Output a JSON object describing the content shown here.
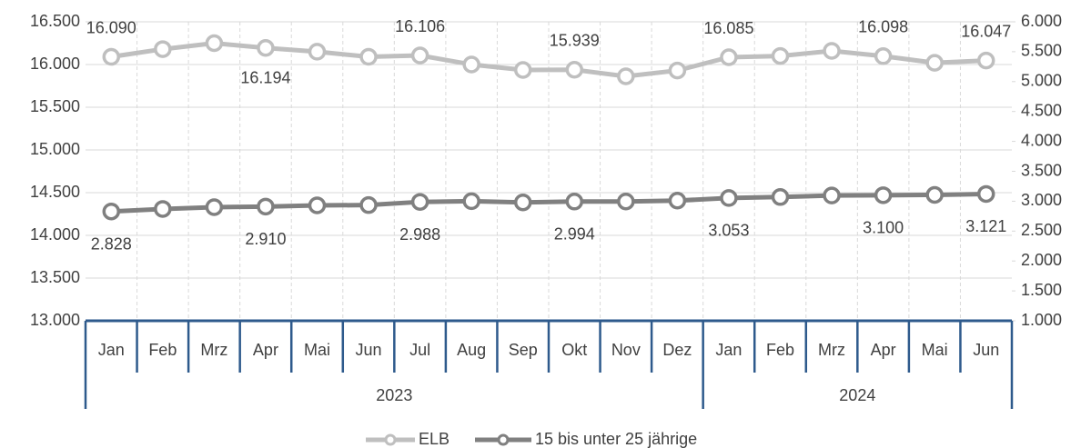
{
  "chart_data": {
    "type": "line",
    "categories": [
      "Jan",
      "Feb",
      "Mrz",
      "Apr",
      "Mai",
      "Jun",
      "Jul",
      "Aug",
      "Sep",
      "Okt",
      "Nov",
      "Dez",
      "Jan",
      "Feb",
      "Mrz",
      "Apr",
      "Mai",
      "Jun"
    ],
    "groups": [
      {
        "name": "2023",
        "count": 12
      },
      {
        "name": "2024",
        "count": 6
      }
    ],
    "series": [
      {
        "name": "ELB",
        "color": "#bfbfbf",
        "axis": "y",
        "values": [
          16090,
          16180,
          16250,
          16194,
          16150,
          16090,
          16106,
          16000,
          15936,
          15939,
          15862,
          15930,
          16085,
          16100,
          16160,
          16098,
          16020,
          16047
        ],
        "value_labels": [
          "16.090",
          null,
          null,
          "16.194",
          null,
          null,
          "16.106",
          null,
          null,
          "15.939",
          null,
          null,
          "16.085",
          null,
          null,
          "16.098",
          null,
          "16.047"
        ]
      },
      {
        "name": "15 bis unter 25 jährige",
        "color": "#808080",
        "axis": "y2",
        "values": [
          2828,
          2870,
          2900,
          2910,
          2930,
          2935,
          2988,
          3000,
          2980,
          2994,
          2995,
          3010,
          3053,
          3070,
          3095,
          3100,
          3105,
          3121
        ],
        "value_labels": [
          "2.828",
          null,
          null,
          "2.910",
          null,
          null,
          "2.988",
          null,
          null,
          "2.994",
          null,
          null,
          "3.053",
          null,
          null,
          "3.100",
          null,
          "3.121"
        ]
      }
    ],
    "ylim": [
      13000,
      16500
    ],
    "yticks": [
      {
        "value": 13000,
        "label": "13.000"
      },
      {
        "value": 13500,
        "label": "13.500"
      },
      {
        "value": 14000,
        "label": "14.000"
      },
      {
        "value": 14500,
        "label": "14.500"
      },
      {
        "value": 15000,
        "label": "15.000"
      },
      {
        "value": 15500,
        "label": "15.500"
      },
      {
        "value": 16000,
        "label": "16.000"
      },
      {
        "value": 16500,
        "label": "16.500"
      }
    ],
    "y2lim": [
      1000,
      6000
    ],
    "y2ticks": [
      {
        "value": 1000,
        "label": "1.000"
      },
      {
        "value": 1500,
        "label": "1.500"
      },
      {
        "value": 2000,
        "label": "2.000"
      },
      {
        "value": 2500,
        "label": "2.500"
      },
      {
        "value": 3000,
        "label": "3.000"
      },
      {
        "value": 3500,
        "label": "3.500"
      },
      {
        "value": 4000,
        "label": "4.000"
      },
      {
        "value": 4500,
        "label": "4.500"
      },
      {
        "value": 5000,
        "label": "5.000"
      },
      {
        "value": 5500,
        "label": "5.500"
      },
      {
        "value": 6000,
        "label": "6.000"
      }
    ],
    "grid": true,
    "legend": "bottom"
  }
}
